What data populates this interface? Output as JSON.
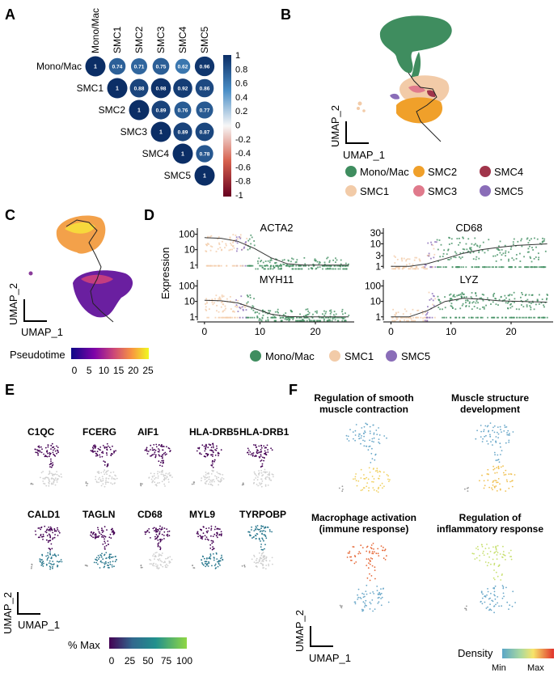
{
  "panels": {
    "a": "A",
    "b": "B",
    "c": "C",
    "d": "D",
    "e": "E",
    "f": "F"
  },
  "colors": {
    "mono": "#3f8d5f",
    "smc1": "#f2cba8",
    "smc2": "#f0a02a",
    "smc3": "#e07a8c",
    "smc4": "#a0344a",
    "smc5": "#8a6db8"
  },
  "panelA": {
    "labels": [
      "Mono/Mac",
      "SMC1",
      "SMC2",
      "SMC3",
      "SMC4",
      "SMC5"
    ],
    "matrix": [
      [
        1,
        0.74,
        0.71,
        0.75,
        0.62,
        0.96
      ],
      [
        null,
        1,
        0.88,
        0.98,
        0.92,
        0.86
      ],
      [
        null,
        null,
        1,
        0.89,
        0.76,
        0.77
      ],
      [
        null,
        null,
        null,
        1,
        0.89,
        0.87
      ],
      [
        null,
        null,
        null,
        null,
        1,
        0.78
      ],
      [
        null,
        null,
        null,
        null,
        null,
        1
      ]
    ],
    "colorbar_ticks": [
      "1",
      "0.8",
      "0.6",
      "0.4",
      "0.2",
      "0",
      "-0.2",
      "-0.4",
      "-0.6",
      "-0.8",
      "-1"
    ]
  },
  "panelB": {
    "xlabel": "UMAP_1",
    "ylabel": "UMAP_2",
    "legend": [
      "Mono/Mac",
      "SMC2",
      "SMC4",
      "SMC1",
      "SMC3",
      "SMC5"
    ]
  },
  "panelC": {
    "xlabel": "UMAP_1",
    "ylabel": "UMAP_2",
    "colorbar_title": "Pseudotime",
    "colorbar_ticks": [
      "0",
      "5",
      "10",
      "15",
      "20",
      "25"
    ]
  },
  "chart_data": [
    {
      "type": "scatter",
      "title": "ACTA2",
      "xlabel": "",
      "ylabel": "Expression",
      "x_ticks": [
        "0",
        "10",
        "20"
      ],
      "y_ticks": [
        "100",
        "10",
        "1"
      ],
      "yscale": "log",
      "ylim": [
        0.6,
        250
      ],
      "xlim": [
        -1,
        27
      ],
      "trend": {
        "x": [
          0,
          3,
          6,
          9,
          12,
          15,
          18,
          26
        ],
        "y": [
          60,
          55,
          35,
          12,
          3,
          1.2,
          1,
          1
        ]
      }
    },
    {
      "type": "scatter",
      "title": "MYH11",
      "xlabel": "",
      "ylabel": "Expression",
      "x_ticks": [
        "0",
        "10",
        "20"
      ],
      "y_ticks": [
        "100",
        "10",
        "1"
      ],
      "yscale": "log",
      "ylim": [
        0.6,
        250
      ],
      "xlim": [
        -1,
        27
      ],
      "trend": {
        "x": [
          0,
          3,
          6,
          9,
          12,
          15,
          18,
          26
        ],
        "y": [
          12,
          11,
          8,
          3.5,
          1.5,
          1.05,
          1,
          1
        ]
      }
    },
    {
      "type": "scatter",
      "title": "CD68",
      "xlabel": "",
      "ylabel": "",
      "x_ticks": [
        "0",
        "10",
        "20"
      ],
      "y_ticks": [
        "30",
        "10",
        "3",
        "1"
      ],
      "yscale": "log",
      "ylim": [
        0.8,
        50
      ],
      "xlim": [
        -1,
        27
      ],
      "trend": {
        "x": [
          0,
          3,
          6,
          9,
          12,
          15,
          18,
          21,
          26
        ],
        "y": [
          1,
          1,
          1.3,
          2.2,
          3.8,
          5.5,
          7,
          8.5,
          10
        ]
      }
    },
    {
      "type": "scatter",
      "title": "LYZ",
      "xlabel": "",
      "ylabel": "",
      "x_ticks": [
        "0",
        "10",
        "20"
      ],
      "y_ticks": [
        "100",
        "10",
        "1"
      ],
      "yscale": "log",
      "ylim": [
        0.6,
        250
      ],
      "xlim": [
        -1,
        27
      ],
      "trend": {
        "x": [
          0,
          3,
          6,
          9,
          12,
          15,
          18,
          26
        ],
        "y": [
          1,
          1,
          2.5,
          10,
          16,
          14,
          11,
          9
        ]
      }
    }
  ],
  "panelD": {
    "legend": [
      "Mono/Mac",
      "SMC1",
      "SMC5"
    ]
  },
  "panelE": {
    "genes_row1": [
      "C1QC",
      "FCERG",
      "AIF1",
      "HLA-DRB5",
      "HLA-DRB1"
    ],
    "genes_row2": [
      "CALD1",
      "TAGLN",
      "CD68",
      "MYL9",
      "TYRPOBP"
    ],
    "xlabel": "UMAP_1",
    "ylabel": "UMAP_2",
    "colorbar_title": "% Max",
    "colorbar_ticks": [
      "0",
      "25",
      "50",
      "75",
      "100"
    ]
  },
  "panelF": {
    "titles": [
      [
        "Regulation of smooth",
        "muscle contraction"
      ],
      [
        "Muscle structure",
        "development"
      ],
      [
        "Macrophage activation",
        "(immune response)"
      ],
      [
        "Regulation of",
        "inflammatory response"
      ]
    ],
    "xlabel": "UMAP_1",
    "ylabel": "UMAP_2",
    "density_label": "Density",
    "density_min": "Min",
    "density_max": "Max"
  }
}
